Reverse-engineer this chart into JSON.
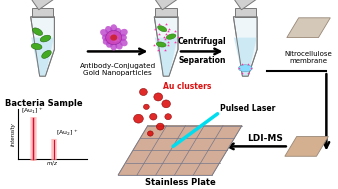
{
  "background_color": "#ffffff",
  "figure_width": 3.38,
  "figure_height": 1.89,
  "dpi": 100,
  "arrow1_label1": "Antibody-Conjugated",
  "arrow1_label2": "Gold Nanoparticles",
  "arrow2_label1": "Centrifugal",
  "arrow2_label2": "Separation",
  "nitrocellulose_label1": "Nitrocellulose",
  "nitrocellulose_label2": "membrane",
  "ldims_label": "LDI-MS",
  "bacteria_label": "Bacteria Sample",
  "stainless_label": "Stainless Plate",
  "au_clusters_label": "Au clusters",
  "pulsed_laser_label": "Pulsed Laser",
  "nc_membrane_color": "#d4c8b8",
  "ldims_membrane_color": "#d4b090",
  "bacteria_fill": "#44aa22",
  "au_cluster_color": "#dd1111",
  "laser_color": "#00ddee",
  "nanoparticle_purple": "#cc55cc",
  "nanoparticle_red": "#cc2233"
}
